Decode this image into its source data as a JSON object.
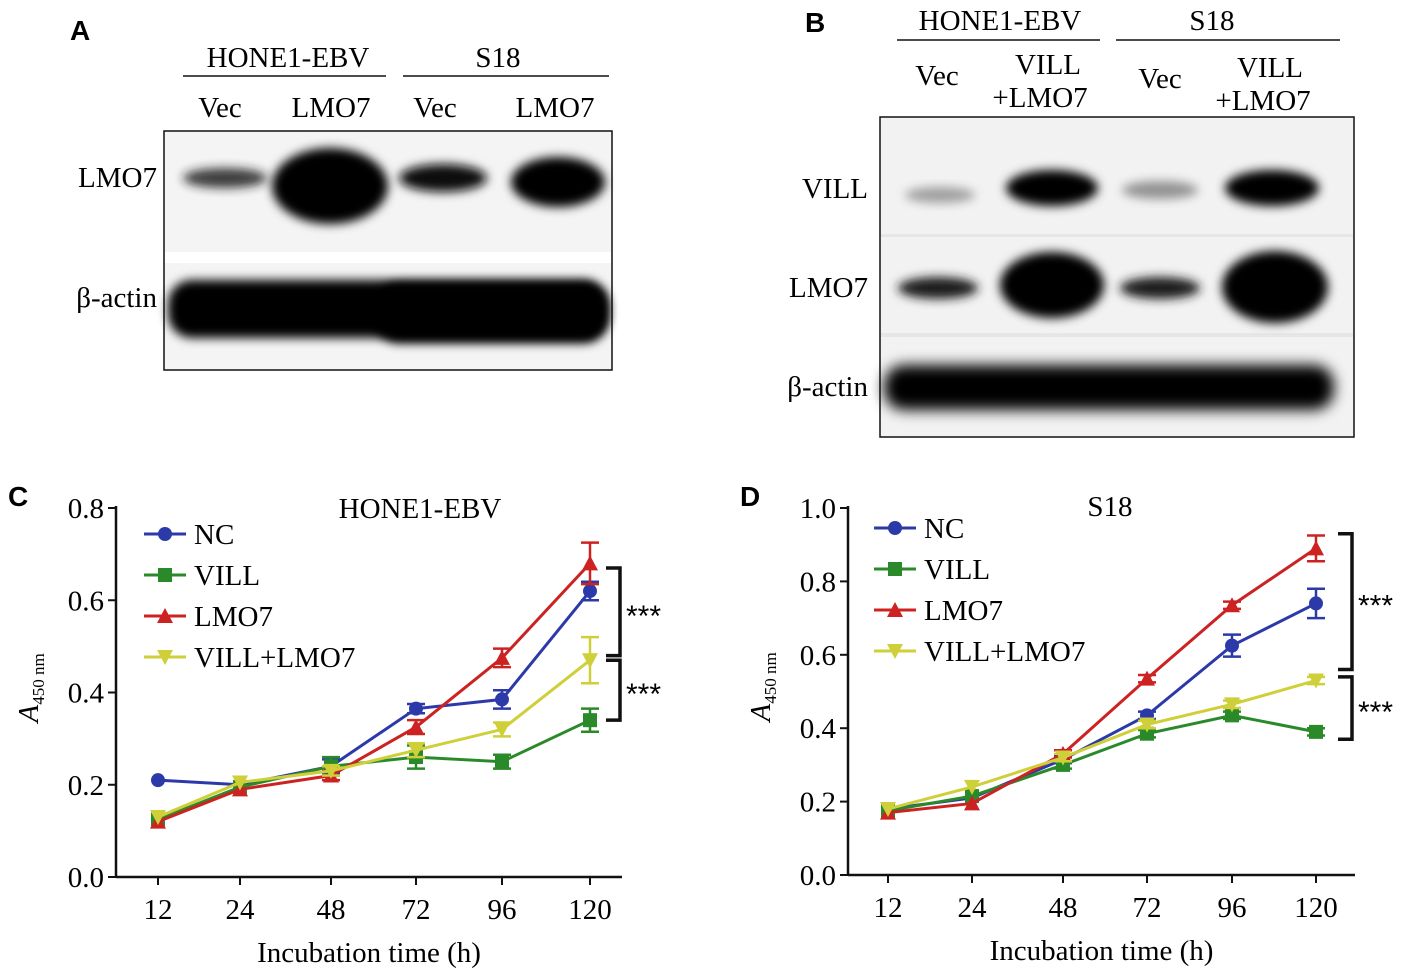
{
  "panels": {
    "A": {
      "letter": "A",
      "groups": [
        {
          "label": "HONE1-EBV",
          "lanes": [
            "Vec",
            "LMO7"
          ]
        },
        {
          "label": "S18",
          "lanes": [
            "Vec",
            "LMO7"
          ]
        }
      ],
      "rows": [
        "LMO7",
        "β-actin"
      ]
    },
    "B": {
      "letter": "B",
      "groups": [
        {
          "label": "HONE1-EBV",
          "lanes": [
            [
              "Vec"
            ],
            [
              "VILL",
              "+LMO7"
            ]
          ]
        },
        {
          "label": "S18",
          "lanes": [
            [
              "Vec"
            ],
            [
              "VILL",
              "+LMO7"
            ]
          ]
        }
      ],
      "rows": [
        "VILL",
        "LMO7",
        "β-actin"
      ]
    }
  },
  "chart_data": [
    {
      "panel": "C",
      "type": "line",
      "title": "HONE1-EBV",
      "xlabel": "Incubation time (h)",
      "ylabel_main": "A",
      "ylabel_sub": "450 nm",
      "categories": [
        "12",
        "24",
        "48",
        "72",
        "96",
        "120"
      ],
      "ylim": [
        0,
        0.8
      ],
      "yticks": [
        "0.0",
        "0.2",
        "0.4",
        "0.6",
        "0.8"
      ],
      "legend_position": "top-left",
      "series": [
        {
          "name": "NC",
          "marker": "circle",
          "color": "#2b3aa8",
          "values": [
            0.21,
            0.2,
            0.24,
            0.365,
            0.385,
            0.62
          ],
          "errors": [
            0.005,
            0.005,
            0.015,
            0.01,
            0.02,
            0.02
          ]
        },
        {
          "name": "VILL",
          "marker": "square",
          "color": "#2a8a2a",
          "values": [
            0.125,
            0.195,
            0.24,
            0.26,
            0.25,
            0.34
          ],
          "errors": [
            0.005,
            0.005,
            0.02,
            0.025,
            0.015,
            0.025
          ]
        },
        {
          "name": "LMO7",
          "marker": "triangle",
          "color": "#cc2222",
          "values": [
            0.12,
            0.19,
            0.22,
            0.325,
            0.475,
            0.68
          ],
          "errors": [
            0.005,
            0.005,
            0.01,
            0.015,
            0.02,
            0.045
          ]
        },
        {
          "name": "VILL+LMO7",
          "marker": "triangle-down",
          "color": "#cfcf3a",
          "values": [
            0.13,
            0.205,
            0.23,
            0.275,
            0.32,
            0.47
          ],
          "errors": [
            0.005,
            0.005,
            0.01,
            0.015,
            0.015,
            0.05
          ]
        }
      ],
      "significance": [
        {
          "text": "***",
          "range": [
            0.48,
            0.67
          ]
        },
        {
          "text": "***",
          "range": [
            0.34,
            0.47
          ]
        }
      ]
    },
    {
      "panel": "D",
      "type": "line",
      "title": "S18",
      "xlabel": "Incubation time (h)",
      "ylabel_main": "A",
      "ylabel_sub": "450 nm",
      "categories": [
        "12",
        "24",
        "48",
        "72",
        "96",
        "120"
      ],
      "ylim": [
        0,
        1.0
      ],
      "yticks": [
        "0.0",
        "0.2",
        "0.4",
        "0.6",
        "0.8",
        "1.0"
      ],
      "legend_position": "top-left",
      "series": [
        {
          "name": "NC",
          "marker": "circle",
          "color": "#2b3aa8",
          "values": [
            0.18,
            0.21,
            0.315,
            0.435,
            0.625,
            0.74
          ],
          "errors": [
            0.005,
            0.005,
            0.01,
            0.01,
            0.03,
            0.04
          ]
        },
        {
          "name": "VILL",
          "marker": "square",
          "color": "#2a8a2a",
          "values": [
            0.175,
            0.215,
            0.3,
            0.385,
            0.435,
            0.39
          ],
          "errors": [
            0.005,
            0.005,
            0.01,
            0.01,
            0.01,
            0.01
          ]
        },
        {
          "name": "LMO7",
          "marker": "triangle",
          "color": "#cc2222",
          "values": [
            0.17,
            0.195,
            0.33,
            0.535,
            0.735,
            0.89
          ],
          "errors": [
            0.005,
            0.005,
            0.01,
            0.01,
            0.01,
            0.035
          ]
        },
        {
          "name": "VILL+LMO7",
          "marker": "triangle-down",
          "color": "#cfcf3a",
          "values": [
            0.18,
            0.24,
            0.32,
            0.41,
            0.465,
            0.53
          ],
          "errors": [
            0.005,
            0.005,
            0.01,
            0.01,
            0.01,
            0.01
          ]
        }
      ],
      "significance": [
        {
          "text": "***",
          "range": [
            0.56,
            0.93
          ]
        },
        {
          "text": "***",
          "range": [
            0.37,
            0.54
          ]
        }
      ]
    }
  ]
}
